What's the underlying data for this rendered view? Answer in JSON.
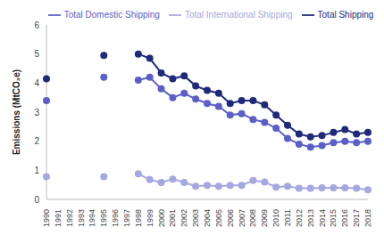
{
  "chart_data": {
    "type": "line",
    "y_label": "Emissions (MtCO₂e)",
    "categories": [
      "1990",
      "1991",
      "1992",
      "1993",
      "1994",
      "1995",
      "1996",
      "1997",
      "1998",
      "1999",
      "2000",
      "2001",
      "2002",
      "2003",
      "2004",
      "2005",
      "2006",
      "2007",
      "2008",
      "2009",
      "2010",
      "2011",
      "2012",
      "2013",
      "2014",
      "2015",
      "2016",
      "2017",
      "2018"
    ],
    "series": [
      {
        "name": "Total Domestic Shipping",
        "color": "#5b5fc7",
        "marker": "circle",
        "values": [
          3.4,
          null,
          null,
          null,
          null,
          4.2,
          null,
          null,
          4.1,
          4.2,
          3.8,
          3.5,
          3.65,
          3.45,
          3.3,
          3.2,
          2.9,
          2.95,
          2.75,
          2.65,
          2.45,
          2.1,
          1.9,
          1.8,
          1.85,
          1.95,
          2.0,
          1.95,
          2.0
        ]
      },
      {
        "name": "Total International Shipping",
        "color": "#a5a8e0",
        "marker": "circle",
        "values": [
          0.78,
          null,
          null,
          null,
          null,
          0.78,
          null,
          null,
          0.88,
          0.68,
          0.58,
          0.7,
          0.58,
          0.45,
          0.48,
          0.45,
          0.48,
          0.48,
          0.65,
          0.6,
          0.42,
          0.45,
          0.38,
          0.38,
          0.4,
          0.4,
          0.4,
          0.38,
          0.33
        ]
      },
      {
        "name": "Total Shipping",
        "color": "#1f2a7a",
        "marker": "circle",
        "values": [
          4.15,
          null,
          null,
          null,
          null,
          4.95,
          null,
          null,
          5.0,
          4.85,
          4.35,
          4.15,
          4.25,
          3.9,
          3.75,
          3.65,
          3.3,
          3.4,
          3.4,
          3.25,
          2.9,
          2.55,
          2.25,
          2.15,
          2.2,
          2.3,
          2.4,
          2.25,
          2.3
        ]
      }
    ],
    "ylim": [
      0,
      6
    ],
    "yticks": [
      0,
      1,
      2,
      3,
      4,
      5,
      6
    ],
    "grid": false,
    "legend": "top"
  }
}
